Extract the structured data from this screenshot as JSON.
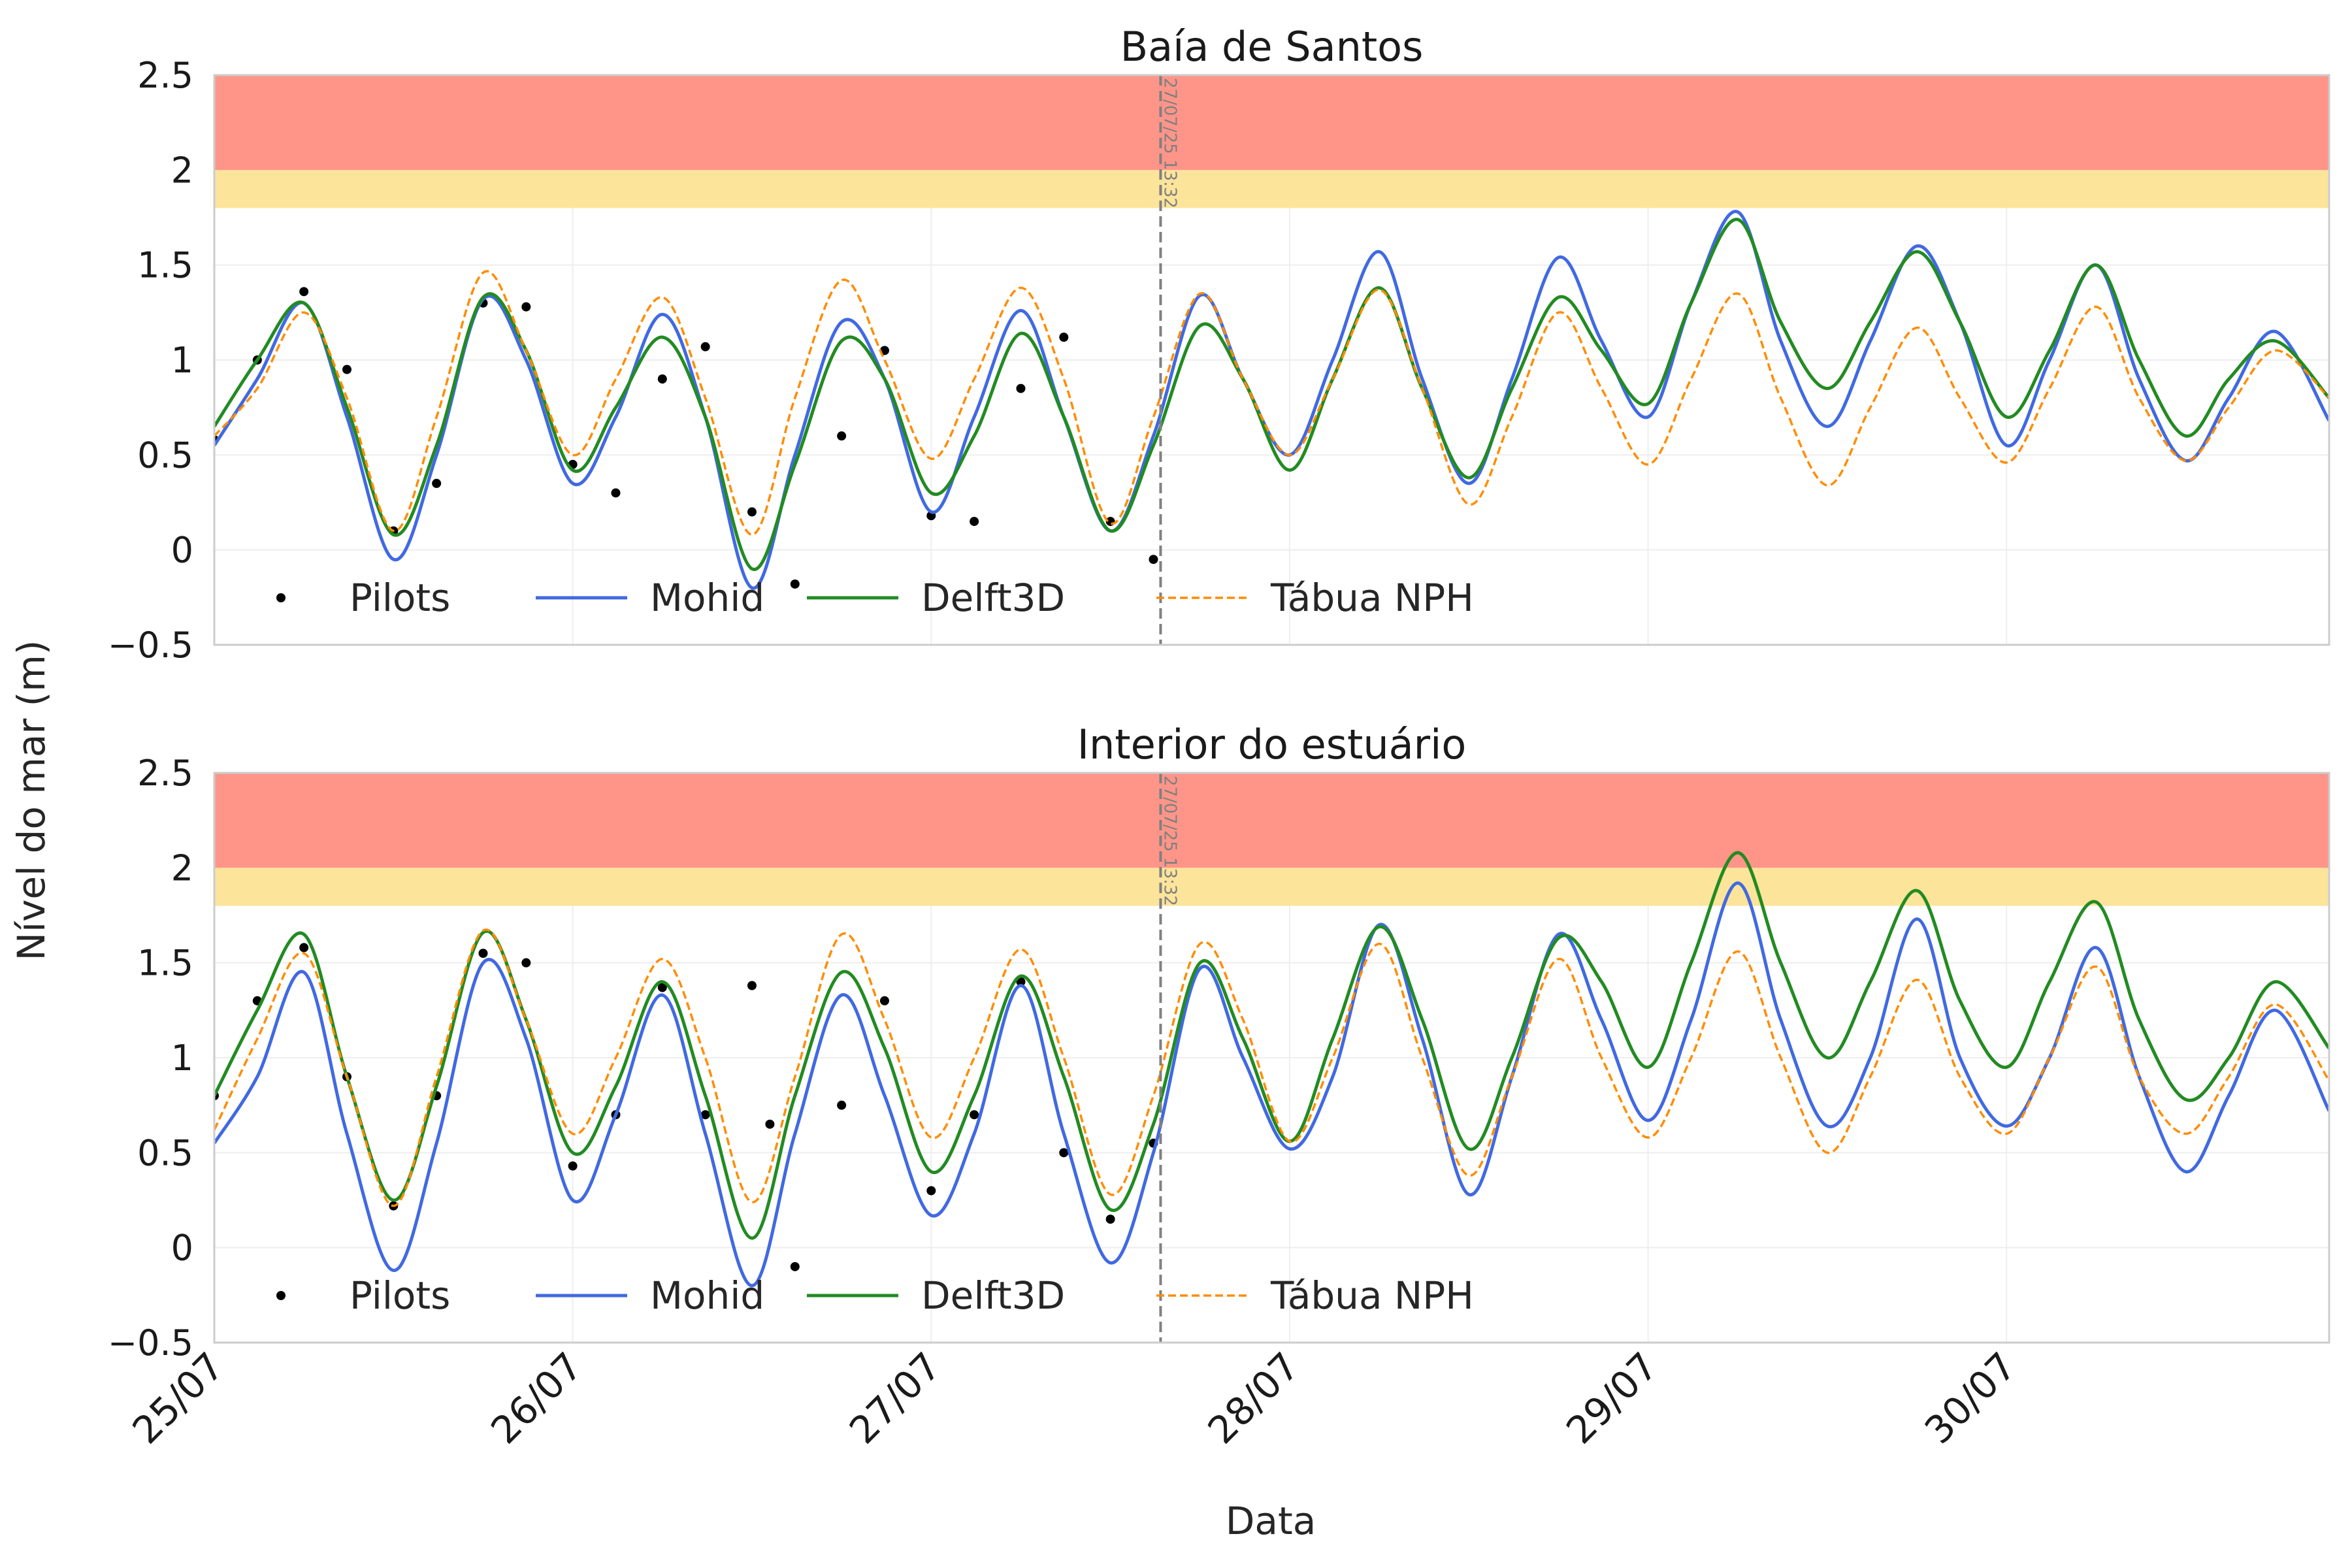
{
  "figure": {
    "ylabel": "Nível do mar (m)",
    "xlabel": "Data",
    "cutoff_label": "27/07/25 13:32"
  },
  "colors": {
    "pilots": "#000000",
    "mohid": "#4169e1",
    "delft3d": "#228b22",
    "nph": "#ff8c00",
    "danger_band": "#ff9589",
    "warning_band": "#fce49a",
    "cutoff": "#808080",
    "grid": "#eeeeee",
    "frame": "#cccccc"
  },
  "legend": [
    {
      "key": "pilots",
      "label": "Pilots"
    },
    {
      "key": "mohid",
      "label": "Mohid"
    },
    {
      "key": "delft3d",
      "label": "Delft3D"
    },
    {
      "key": "nph",
      "label": "Tábua NPH"
    }
  ],
  "chart_data": [
    {
      "type": "line",
      "title": "Baía de Santos",
      "xlabel": "Data",
      "ylabel": "Nível do mar (m)",
      "x_unit": "days since 25/07 00:00",
      "xlim": [
        0,
        5.9
      ],
      "ylim": [
        -0.5,
        2.5
      ],
      "yticks": [
        -0.5,
        0,
        0.5,
        1,
        1.5,
        2,
        2.5
      ],
      "ytick_labels": [
        "−0.5",
        "0",
        "0.5",
        "1",
        "1.5",
        "2",
        "2.5"
      ],
      "xticks": [
        0,
        1,
        2,
        3,
        4,
        5
      ],
      "xtick_labels": [
        "25/07",
        "26/07",
        "27/07",
        "28/07",
        "29/07",
        "30/07"
      ],
      "bands": [
        {
          "from": 2.0,
          "to": 2.5,
          "color": "danger"
        },
        {
          "from": 1.8,
          "to": 2.0,
          "color": "warning"
        }
      ],
      "cutoff_x": 2.64,
      "series": [
        {
          "name": "Pilots",
          "key": "pilots",
          "style": "dots",
          "x": [
            0.0,
            0.12,
            0.25,
            0.37,
            0.5,
            0.62,
            0.75,
            0.87,
            1.0,
            1.12,
            1.25,
            1.37,
            1.5,
            1.62,
            1.75,
            1.87,
            2.0,
            2.12,
            2.25,
            2.37,
            2.5,
            2.62
          ],
          "y": [
            0.58,
            1.0,
            1.36,
            0.95,
            0.1,
            0.35,
            1.3,
            1.28,
            0.45,
            0.3,
            0.9,
            1.07,
            0.2,
            -0.18,
            0.6,
            1.05,
            0.18,
            0.15,
            0.85,
            1.12,
            0.15,
            -0.05
          ]
        },
        {
          "name": "Mohid",
          "key": "mohid",
          "style": "solid",
          "x": [
            0.0,
            0.12,
            0.25,
            0.37,
            0.5,
            0.62,
            0.75,
            0.87,
            1.0,
            1.12,
            1.25,
            1.37,
            1.5,
            1.62,
            1.75,
            1.87,
            2.0,
            2.12,
            2.25,
            2.37,
            2.5,
            2.62,
            2.75,
            2.87,
            3.0,
            3.12,
            3.25,
            3.37,
            3.5,
            3.62,
            3.75,
            3.87,
            4.0,
            4.12,
            4.25,
            4.37,
            4.5,
            4.62,
            4.75,
            4.87,
            5.0,
            5.12,
            5.25,
            5.37,
            5.5,
            5.62,
            5.75,
            5.9
          ],
          "y": [
            0.55,
            0.9,
            1.3,
            0.7,
            -0.05,
            0.5,
            1.32,
            1.0,
            0.35,
            0.7,
            1.24,
            0.7,
            -0.2,
            0.5,
            1.2,
            0.9,
            0.2,
            0.7,
            1.26,
            0.7,
            0.1,
            0.6,
            1.34,
            0.9,
            0.5,
            1.0,
            1.57,
            0.9,
            0.35,
            0.9,
            1.54,
            1.1,
            0.7,
            1.3,
            1.78,
            1.1,
            0.65,
            1.1,
            1.6,
            1.2,
            0.55,
            1.0,
            1.5,
            0.9,
            0.47,
            0.8,
            1.15,
            0.68
          ]
        },
        {
          "name": "Delft3D",
          "key": "delft3d",
          "style": "solid",
          "x": [
            0.0,
            0.12,
            0.25,
            0.37,
            0.5,
            0.62,
            0.75,
            0.87,
            1.0,
            1.12,
            1.25,
            1.37,
            1.5,
            1.62,
            1.75,
            1.87,
            2.0,
            2.12,
            2.25,
            2.37,
            2.5,
            2.62,
            2.75,
            2.87,
            3.0,
            3.12,
            3.25,
            3.37,
            3.5,
            3.62,
            3.75,
            3.87,
            4.0,
            4.12,
            4.25,
            4.37,
            4.5,
            4.62,
            4.75,
            4.87,
            5.0,
            5.12,
            5.25,
            5.37,
            5.5,
            5.62,
            5.75,
            5.9
          ],
          "y": [
            0.65,
            1.0,
            1.3,
            0.75,
            0.08,
            0.55,
            1.33,
            1.05,
            0.42,
            0.75,
            1.12,
            0.7,
            -0.1,
            0.45,
            1.1,
            0.9,
            0.3,
            0.6,
            1.14,
            0.7,
            0.1,
            0.55,
            1.18,
            0.9,
            0.42,
            0.9,
            1.38,
            0.85,
            0.38,
            0.85,
            1.33,
            1.05,
            0.77,
            1.3,
            1.74,
            1.2,
            0.85,
            1.2,
            1.57,
            1.2,
            0.7,
            1.05,
            1.5,
            1.0,
            0.6,
            0.9,
            1.1,
            0.8
          ]
        },
        {
          "name": "Tábua NPH",
          "key": "nph",
          "style": "dashed",
          "x": [
            0.0,
            0.12,
            0.25,
            0.37,
            0.5,
            0.62,
            0.75,
            0.87,
            1.0,
            1.12,
            1.25,
            1.37,
            1.5,
            1.62,
            1.75,
            1.87,
            2.0,
            2.12,
            2.25,
            2.37,
            2.5,
            2.62,
            2.75,
            2.87,
            3.0,
            3.12,
            3.25,
            3.37,
            3.5,
            3.62,
            3.75,
            3.87,
            4.0,
            4.12,
            4.25,
            4.37,
            4.5,
            4.62,
            4.75,
            4.87,
            5.0,
            5.12,
            5.25,
            5.37,
            5.5,
            5.62,
            5.75,
            5.9
          ],
          "y": [
            0.6,
            0.85,
            1.25,
            0.8,
            0.1,
            0.7,
            1.46,
            1.05,
            0.5,
            0.9,
            1.33,
            0.8,
            0.08,
            0.8,
            1.42,
            1.0,
            0.48,
            0.9,
            1.38,
            0.9,
            0.14,
            0.7,
            1.35,
            0.9,
            0.5,
            0.9,
            1.37,
            0.85,
            0.24,
            0.7,
            1.25,
            0.85,
            0.45,
            0.9,
            1.35,
            0.8,
            0.34,
            0.75,
            1.17,
            0.8,
            0.46,
            0.85,
            1.28,
            0.8,
            0.47,
            0.75,
            1.05,
            0.8
          ]
        }
      ]
    },
    {
      "type": "line",
      "title": "Interior do estuário",
      "xlabel": "Data",
      "ylabel": "Nível do mar (m)",
      "x_unit": "days since 25/07 00:00",
      "xlim": [
        0,
        5.9
      ],
      "ylim": [
        -0.5,
        2.5
      ],
      "yticks": [
        -0.5,
        0,
        0.5,
        1,
        1.5,
        2,
        2.5
      ],
      "ytick_labels": [
        "−0.5",
        "0",
        "0.5",
        "1",
        "1.5",
        "2",
        "2.5"
      ],
      "xticks": [
        0,
        1,
        2,
        3,
        4,
        5
      ],
      "xtick_labels": [
        "25/07",
        "26/07",
        "27/07",
        "28/07",
        "29/07",
        "30/07"
      ],
      "bands": [
        {
          "from": 2.0,
          "to": 2.5,
          "color": "danger"
        },
        {
          "from": 1.8,
          "to": 2.0,
          "color": "warning"
        }
      ],
      "cutoff_x": 2.64,
      "series": [
        {
          "name": "Pilots",
          "key": "pilots",
          "style": "dots",
          "x": [
            0.0,
            0.12,
            0.25,
            0.37,
            0.5,
            0.62,
            0.75,
            0.87,
            1.0,
            1.12,
            1.25,
            1.37,
            1.5,
            1.55,
            1.62,
            1.75,
            1.87,
            2.0,
            2.12,
            2.25,
            2.37,
            2.5,
            2.62
          ],
          "y": [
            0.8,
            1.3,
            1.58,
            0.9,
            0.22,
            0.8,
            1.55,
            1.5,
            0.43,
            0.7,
            1.37,
            0.7,
            1.38,
            0.65,
            -0.1,
            0.75,
            1.3,
            0.3,
            0.7,
            1.4,
            0.5,
            0.15,
            0.55
          ]
        },
        {
          "name": "Mohid",
          "key": "mohid",
          "style": "solid",
          "x": [
            0.0,
            0.12,
            0.25,
            0.37,
            0.5,
            0.62,
            0.75,
            0.87,
            1.0,
            1.12,
            1.25,
            1.37,
            1.5,
            1.62,
            1.75,
            1.87,
            2.0,
            2.12,
            2.25,
            2.37,
            2.5,
            2.62,
            2.75,
            2.87,
            3.0,
            3.12,
            3.25,
            3.37,
            3.5,
            3.62,
            3.75,
            3.87,
            4.0,
            4.12,
            4.25,
            4.37,
            4.5,
            4.62,
            4.75,
            4.87,
            5.0,
            5.12,
            5.25,
            5.37,
            5.5,
            5.62,
            5.75,
            5.9
          ],
          "y": [
            0.55,
            0.9,
            1.45,
            0.6,
            -0.12,
            0.55,
            1.5,
            1.1,
            0.25,
            0.7,
            1.33,
            0.6,
            -0.2,
            0.6,
            1.33,
            0.8,
            0.17,
            0.6,
            1.38,
            0.6,
            -0.08,
            0.5,
            1.47,
            1.0,
            0.52,
            0.9,
            1.7,
            1.1,
            0.28,
            0.9,
            1.65,
            1.2,
            0.67,
            1.2,
            1.92,
            1.2,
            0.64,
            1.0,
            1.73,
            1.0,
            0.64,
            1.0,
            1.58,
            0.9,
            0.4,
            0.8,
            1.25,
            0.72
          ]
        },
        {
          "name": "Delft3D",
          "key": "delft3d",
          "style": "solid",
          "x": [
            0.0,
            0.12,
            0.25,
            0.37,
            0.5,
            0.62,
            0.75,
            0.87,
            1.0,
            1.12,
            1.25,
            1.37,
            1.5,
            1.62,
            1.75,
            1.87,
            2.0,
            2.12,
            2.25,
            2.37,
            2.5,
            2.62,
            2.75,
            2.87,
            3.0,
            3.12,
            3.25,
            3.37,
            3.5,
            3.62,
            3.75,
            3.87,
            4.0,
            4.12,
            4.25,
            4.37,
            4.5,
            4.62,
            4.75,
            4.87,
            5.0,
            5.12,
            5.25,
            5.37,
            5.5,
            5.62,
            5.75,
            5.9
          ],
          "y": [
            0.8,
            1.25,
            1.65,
            0.9,
            0.25,
            0.85,
            1.66,
            1.2,
            0.5,
            0.85,
            1.4,
            0.8,
            0.05,
            0.8,
            1.45,
            1.05,
            0.4,
            0.8,
            1.43,
            0.9,
            0.2,
            0.65,
            1.5,
            1.1,
            0.56,
            1.1,
            1.69,
            1.2,
            0.52,
            1.0,
            1.63,
            1.4,
            0.95,
            1.5,
            2.08,
            1.5,
            1.0,
            1.4,
            1.88,
            1.3,
            0.95,
            1.4,
            1.82,
            1.2,
            0.78,
            1.0,
            1.4,
            1.05
          ]
        },
        {
          "name": "Tábua NPH",
          "key": "nph",
          "style": "dashed",
          "x": [
            0.0,
            0.12,
            0.25,
            0.37,
            0.5,
            0.62,
            0.75,
            0.87,
            1.0,
            1.12,
            1.25,
            1.37,
            1.5,
            1.62,
            1.75,
            1.87,
            2.0,
            2.12,
            2.25,
            2.37,
            2.5,
            2.62,
            2.75,
            2.87,
            3.0,
            3.12,
            3.25,
            3.37,
            3.5,
            3.62,
            3.75,
            3.87,
            4.0,
            4.12,
            4.25,
            4.37,
            4.5,
            4.62,
            4.75,
            4.87,
            5.0,
            5.12,
            5.25,
            5.37,
            5.5,
            5.62,
            5.75,
            5.9
          ],
          "y": [
            0.62,
            1.1,
            1.55,
            0.9,
            0.22,
            0.9,
            1.67,
            1.2,
            0.6,
            1.0,
            1.52,
            1.0,
            0.24,
            0.9,
            1.65,
            1.2,
            0.58,
            1.0,
            1.57,
            1.0,
            0.28,
            0.8,
            1.6,
            1.2,
            0.56,
            1.0,
            1.6,
            1.0,
            0.38,
            0.9,
            1.52,
            1.0,
            0.58,
            1.0,
            1.56,
            1.0,
            0.5,
            0.9,
            1.41,
            0.9,
            0.6,
            1.0,
            1.48,
            0.9,
            0.6,
            0.9,
            1.28,
            0.88
          ]
        }
      ]
    }
  ]
}
